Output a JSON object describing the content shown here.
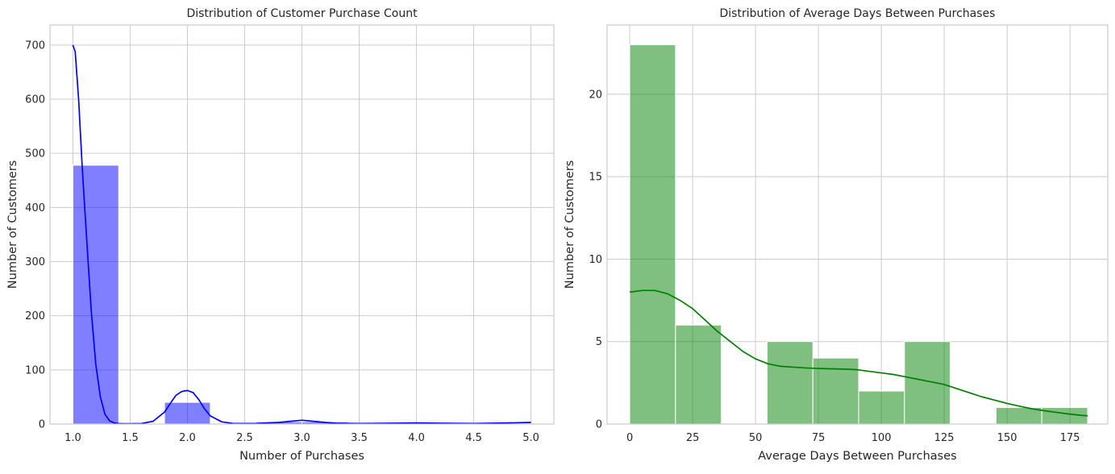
{
  "chart_data": [
    {
      "type": "bar",
      "title": "Distribution of Customer Purchase Count",
      "xlabel": "Number of Purchases",
      "ylabel": "Number of Customers",
      "xlim": [
        0.8,
        5.2
      ],
      "ylim": [
        0,
        737
      ],
      "xticks": [
        1.0,
        1.5,
        2.0,
        2.5,
        3.0,
        3.5,
        4.0,
        4.5,
        5.0
      ],
      "xtick_labels": [
        "1.0",
        "1.5",
        "2.0",
        "2.5",
        "3.0",
        "3.5",
        "4.0",
        "4.5",
        "5.0"
      ],
      "yticks": [
        0,
        100,
        200,
        300,
        400,
        500,
        600,
        700
      ],
      "ytick_labels": [
        "0",
        "100",
        "200",
        "300",
        "400",
        "500",
        "600",
        "700"
      ],
      "grid": true,
      "bar_color": "#0000ff",
      "bar_alpha": 0.5,
      "kde_color": "#0000ff",
      "bins": [
        {
          "x0": 1.0,
          "x1": 1.4,
          "value": 478
        },
        {
          "x0": 1.8,
          "x1": 2.2,
          "value": 40
        },
        {
          "x0": 2.6,
          "x1": 3.0,
          "value": 4
        },
        {
          "x0": 3.0,
          "x1": 3.4,
          "value": 4
        },
        {
          "x0": 3.8,
          "x1": 4.2,
          "value": 1
        },
        {
          "x0": 4.6,
          "x1": 5.0,
          "value": 1
        }
      ],
      "kde": {
        "x": [
          1.0,
          1.02,
          1.05,
          1.08,
          1.1,
          1.13,
          1.16,
          1.2,
          1.24,
          1.28,
          1.32,
          1.36,
          1.4,
          1.45,
          1.5,
          1.6,
          1.7,
          1.8,
          1.85,
          1.9,
          1.95,
          2.0,
          2.05,
          2.1,
          2.15,
          2.2,
          2.3,
          2.4,
          2.5,
          2.6,
          2.7,
          2.8,
          2.9,
          3.0,
          3.1,
          3.2,
          3.3,
          3.5,
          3.8,
          4.0,
          4.2,
          4.5,
          4.8,
          5.0
        ],
        "y": [
          700,
          688,
          600,
          480,
          410,
          310,
          210,
          110,
          50,
          18,
          6,
          2,
          1,
          0.5,
          0.5,
          1,
          5,
          22,
          38,
          53,
          60,
          62,
          58,
          45,
          28,
          15,
          4,
          1,
          1,
          1,
          2,
          3,
          5,
          7,
          5,
          3,
          1.5,
          1,
          1.5,
          2,
          1.5,
          1,
          2,
          3
        ]
      }
    },
    {
      "type": "bar",
      "title": "Distribution of Average Days Between Purchases",
      "xlabel": "Average Days Between Purchases",
      "ylabel": "Number of Customers",
      "xlim": [
        -9,
        190
      ],
      "ylim": [
        0,
        24.2
      ],
      "xticks": [
        0,
        25,
        50,
        75,
        100,
        125,
        150,
        175
      ],
      "xtick_labels": [
        "0",
        "25",
        "50",
        "75",
        "100",
        "125",
        "150",
        "175"
      ],
      "yticks": [
        0,
        5,
        10,
        15,
        20
      ],
      "ytick_labels": [
        "0",
        "5",
        "10",
        "15",
        "20"
      ],
      "grid": true,
      "bar_color": "#008000",
      "bar_alpha": 0.5,
      "kde_color": "#008000",
      "bins": [
        {
          "x0": 0,
          "x1": 18.2,
          "value": 23
        },
        {
          "x0": 18.2,
          "x1": 36.4,
          "value": 6
        },
        {
          "x0": 36.4,
          "x1": 54.6,
          "value": 0
        },
        {
          "x0": 54.6,
          "x1": 72.8,
          "value": 5
        },
        {
          "x0": 72.8,
          "x1": 91.0,
          "value": 4
        },
        {
          "x0": 91.0,
          "x1": 109.2,
          "value": 2
        },
        {
          "x0": 109.2,
          "x1": 127.4,
          "value": 5
        },
        {
          "x0": 127.4,
          "x1": 145.6,
          "value": 0
        },
        {
          "x0": 145.6,
          "x1": 163.8,
          "value": 1
        },
        {
          "x0": 163.8,
          "x1": 182,
          "value": 1
        }
      ],
      "kde": {
        "x": [
          0,
          5,
          10,
          15,
          20,
          25,
          30,
          35,
          40,
          45,
          50,
          55,
          60,
          65,
          70,
          75,
          80,
          85,
          90,
          95,
          100,
          105,
          110,
          115,
          120,
          125,
          130,
          135,
          140,
          145,
          150,
          155,
          160,
          165,
          170,
          175,
          180,
          182
        ],
        "y": [
          8.0,
          8.1,
          8.1,
          7.9,
          7.5,
          7.0,
          6.3,
          5.6,
          5.0,
          4.4,
          3.95,
          3.65,
          3.5,
          3.45,
          3.4,
          3.37,
          3.35,
          3.33,
          3.3,
          3.2,
          3.1,
          3.0,
          2.85,
          2.7,
          2.55,
          2.4,
          2.15,
          1.9,
          1.65,
          1.45,
          1.25,
          1.08,
          0.92,
          0.8,
          0.7,
          0.6,
          0.52,
          0.5
        ]
      }
    }
  ]
}
